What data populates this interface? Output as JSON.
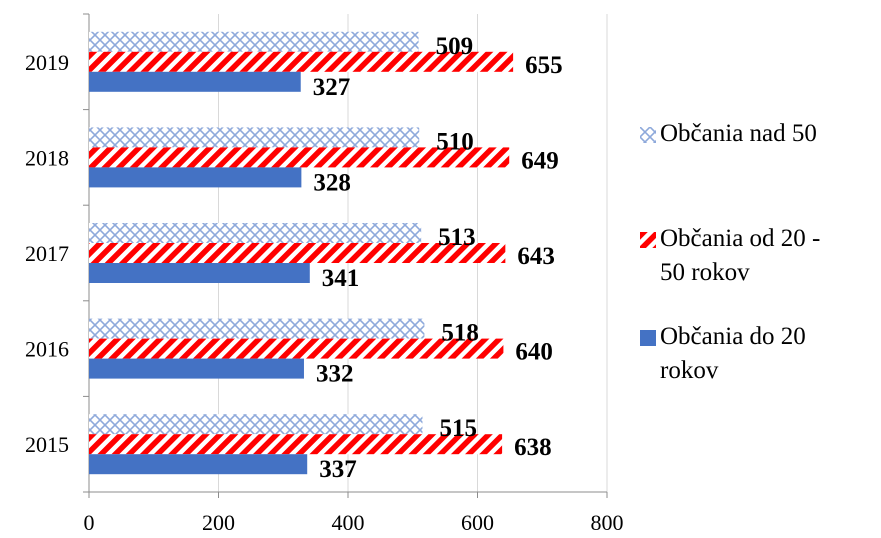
{
  "chart_data": {
    "type": "bar",
    "orientation": "horizontal",
    "categories": [
      "2015",
      "2016",
      "2017",
      "2018",
      "2019"
    ],
    "series": [
      {
        "name": "Občania do 20 rokov",
        "values": [
          337,
          332,
          341,
          328,
          327
        ],
        "color": "#4472C4",
        "pattern": "solid"
      },
      {
        "name": "Občania od 20 - 50 rokov",
        "values": [
          638,
          640,
          643,
          649,
          655
        ],
        "color": "#FF0000",
        "pattern": "diagonal-stripes"
      },
      {
        "name": "Občania nad 50",
        "values": [
          515,
          518,
          513,
          510,
          509
        ],
        "color": "#8EA9DB",
        "pattern": "cross-hatch"
      }
    ],
    "xlim": [
      0,
      800
    ],
    "xticks": [
      "0",
      "200",
      "400",
      "600",
      "800"
    ],
    "grid": "vertical",
    "legend": "right"
  },
  "legend": {
    "items": [
      {
        "label": "Občania nad 50",
        "swatch": "cross-hatch"
      },
      {
        "label": "Občania od 20  -\n50 rokov",
        "swatch": "diagonal-stripes"
      },
      {
        "label": "Občania do 20\nrokov",
        "swatch": "solid"
      }
    ]
  }
}
